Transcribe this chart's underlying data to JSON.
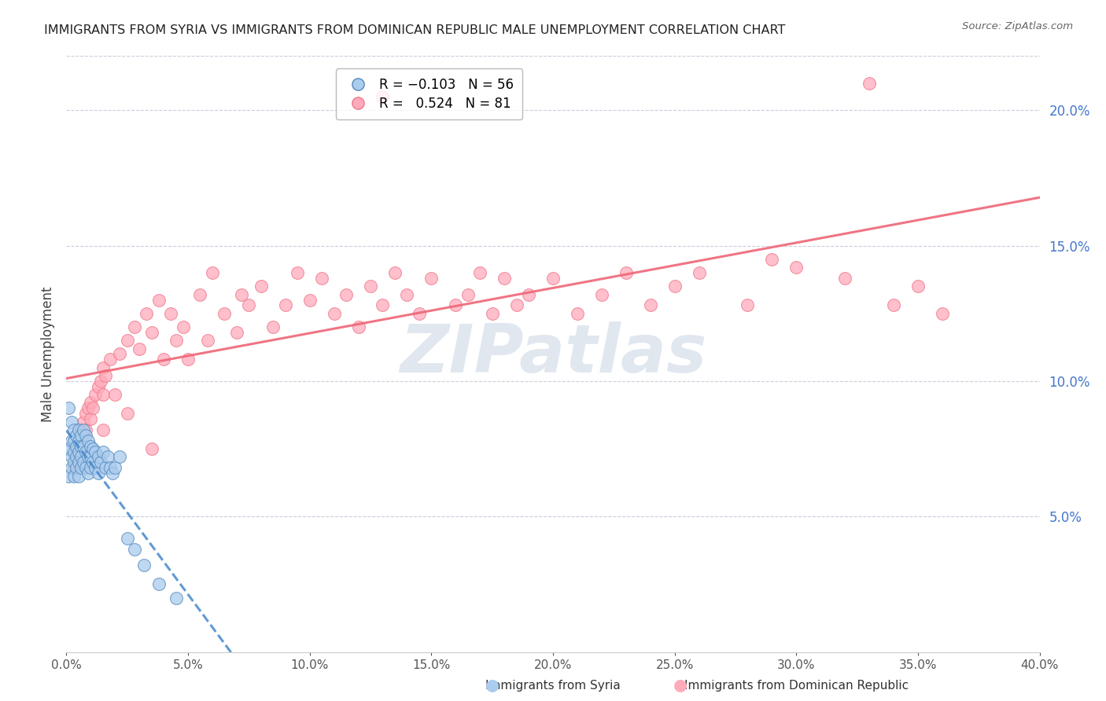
{
  "title": "IMMIGRANTS FROM SYRIA VS IMMIGRANTS FROM DOMINICAN REPUBLIC MALE UNEMPLOYMENT CORRELATION CHART",
  "source": "Source: ZipAtlas.com",
  "ylabel": "Male Unemployment",
  "xlim": [
    0.0,
    0.4
  ],
  "ylim": [
    0.0,
    0.22
  ],
  "yticks_right": [
    0.05,
    0.1,
    0.15,
    0.2
  ],
  "color_syria_fill": "#aaccee",
  "color_syria_edge": "#5588bb",
  "color_syria_line": "#4488cc",
  "color_dr_fill": "#ffaabb",
  "color_dr_edge": "#ee7788",
  "color_dr_line": "#ee6677",
  "watermark": "ZIPatlas",
  "watermark_color": "#9ab0cc",
  "background_color": "#ffffff",
  "legend_r1": "R = -0.103",
  "legend_n1": "N = 56",
  "legend_r2": "R =  0.524",
  "legend_n2": "N = 81",
  "syria_x": [
    0.001,
    0.001,
    0.001,
    0.002,
    0.002,
    0.002,
    0.002,
    0.003,
    0.003,
    0.003,
    0.003,
    0.003,
    0.004,
    0.004,
    0.004,
    0.004,
    0.005,
    0.005,
    0.005,
    0.005,
    0.005,
    0.006,
    0.006,
    0.006,
    0.006,
    0.007,
    0.007,
    0.007,
    0.008,
    0.008,
    0.008,
    0.009,
    0.009,
    0.009,
    0.01,
    0.01,
    0.01,
    0.011,
    0.011,
    0.012,
    0.012,
    0.013,
    0.013,
    0.014,
    0.015,
    0.016,
    0.017,
    0.018,
    0.019,
    0.02,
    0.022,
    0.025,
    0.028,
    0.032,
    0.038,
    0.045
  ],
  "syria_y": [
    0.09,
    0.075,
    0.065,
    0.085,
    0.078,
    0.072,
    0.068,
    0.082,
    0.078,
    0.074,
    0.07,
    0.065,
    0.08,
    0.076,
    0.072,
    0.068,
    0.082,
    0.078,
    0.074,
    0.07,
    0.065,
    0.08,
    0.076,
    0.072,
    0.068,
    0.082,
    0.076,
    0.07,
    0.08,
    0.074,
    0.068,
    0.078,
    0.072,
    0.066,
    0.076,
    0.072,
    0.068,
    0.075,
    0.07,
    0.074,
    0.068,
    0.072,
    0.066,
    0.07,
    0.074,
    0.068,
    0.072,
    0.068,
    0.066,
    0.068,
    0.072,
    0.042,
    0.038,
    0.032,
    0.025,
    0.02
  ],
  "dr_x": [
    0.003,
    0.004,
    0.005,
    0.006,
    0.006,
    0.007,
    0.007,
    0.008,
    0.008,
    0.009,
    0.01,
    0.01,
    0.011,
    0.012,
    0.013,
    0.014,
    0.015,
    0.015,
    0.016,
    0.018,
    0.02,
    0.022,
    0.025,
    0.028,
    0.03,
    0.033,
    0.035,
    0.038,
    0.04,
    0.043,
    0.045,
    0.048,
    0.05,
    0.055,
    0.058,
    0.06,
    0.065,
    0.07,
    0.072,
    0.075,
    0.08,
    0.085,
    0.09,
    0.095,
    0.1,
    0.105,
    0.11,
    0.115,
    0.12,
    0.125,
    0.13,
    0.135,
    0.14,
    0.145,
    0.15,
    0.16,
    0.165,
    0.17,
    0.175,
    0.18,
    0.185,
    0.19,
    0.2,
    0.21,
    0.22,
    0.23,
    0.24,
    0.25,
    0.26,
    0.28,
    0.3,
    0.32,
    0.34,
    0.35,
    0.36,
    0.13,
    0.29,
    0.33,
    0.015,
    0.025,
    0.035
  ],
  "dr_y": [
    0.068,
    0.075,
    0.072,
    0.082,
    0.078,
    0.085,
    0.08,
    0.088,
    0.082,
    0.09,
    0.086,
    0.092,
    0.09,
    0.095,
    0.098,
    0.1,
    0.095,
    0.105,
    0.102,
    0.108,
    0.095,
    0.11,
    0.115,
    0.12,
    0.112,
    0.125,
    0.118,
    0.13,
    0.108,
    0.125,
    0.115,
    0.12,
    0.108,
    0.132,
    0.115,
    0.14,
    0.125,
    0.118,
    0.132,
    0.128,
    0.135,
    0.12,
    0.128,
    0.14,
    0.13,
    0.138,
    0.125,
    0.132,
    0.12,
    0.135,
    0.128,
    0.14,
    0.132,
    0.125,
    0.138,
    0.128,
    0.132,
    0.14,
    0.125,
    0.138,
    0.128,
    0.132,
    0.138,
    0.125,
    0.132,
    0.14,
    0.128,
    0.135,
    0.14,
    0.128,
    0.142,
    0.138,
    0.128,
    0.135,
    0.125,
    0.205,
    0.145,
    0.21,
    0.082,
    0.088,
    0.075
  ]
}
